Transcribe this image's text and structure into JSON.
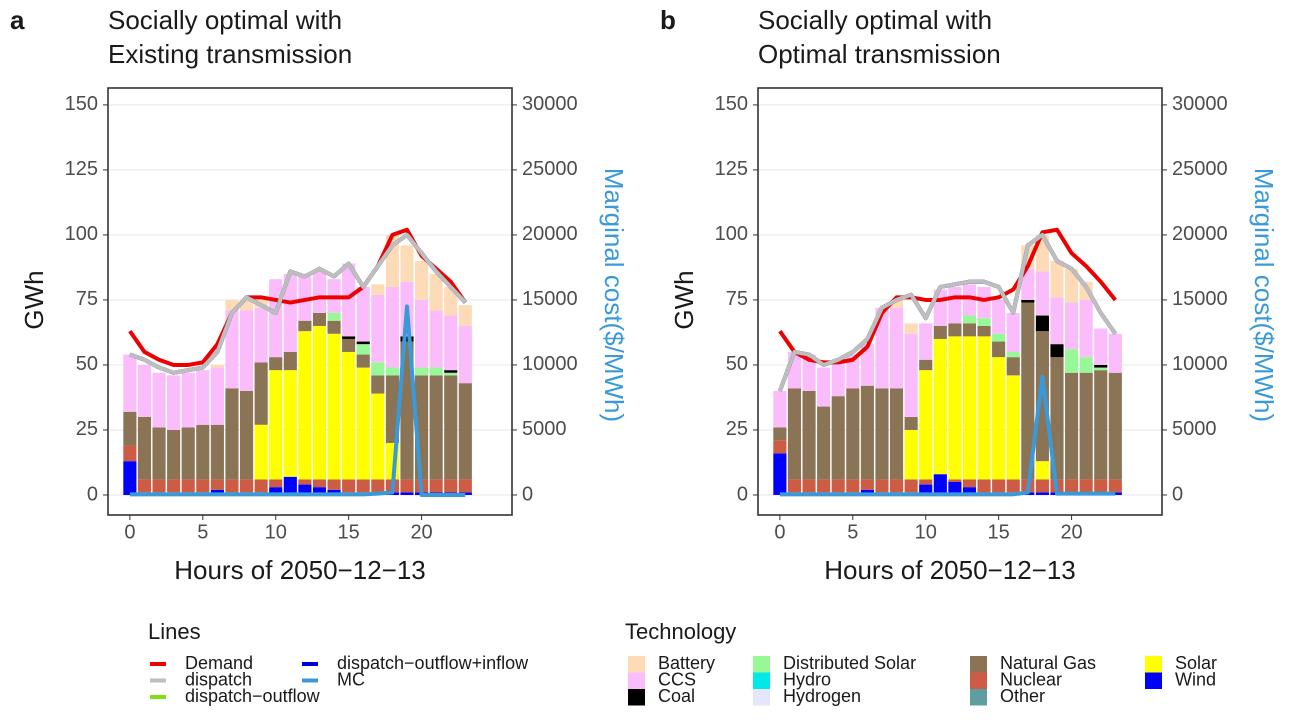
{
  "chart_data": [
    {
      "type": "bar",
      "panel": "a",
      "title": [
        "Socially optimal with",
        "Existing transmission"
      ],
      "x_label": "Hours of 2050−12−13",
      "y_label": "GWh",
      "y2_label": "Marginal cost($/MWh)",
      "x": [
        0,
        1,
        2,
        3,
        4,
        5,
        6,
        7,
        8,
        9,
        10,
        11,
        12,
        13,
        14,
        15,
        16,
        17,
        18,
        19,
        20,
        21,
        22,
        23
      ],
      "xlim": [
        -1.5,
        26.2
      ],
      "xticks": [
        0,
        5,
        10,
        15,
        20
      ],
      "ylim": [
        -7.7,
        156.5
      ],
      "yticks": [
        0,
        25,
        50,
        75,
        100,
        125,
        150
      ],
      "y2lim": [
        -1540,
        31300
      ],
      "y2ticks": [
        0,
        5000,
        10000,
        15000,
        20000,
        25000,
        30000
      ],
      "grid": true,
      "series": [
        {
          "name": "Wind",
          "color": "#0000ff",
          "values": [
            13,
            1,
            1,
            1,
            1,
            1,
            2,
            1,
            1,
            1,
            3,
            7,
            4,
            3,
            2,
            1,
            1,
            1,
            1,
            1,
            1,
            1,
            1,
            1
          ]
        },
        {
          "name": "Nuclear",
          "color": "#cd5c45",
          "values": [
            6,
            5,
            5,
            5,
            5,
            5,
            4,
            5,
            5,
            5,
            3,
            0,
            2,
            3,
            4,
            5,
            5,
            5,
            5,
            5,
            5,
            5,
            5,
            5
          ]
        },
        {
          "name": "Other",
          "color": "#5f9ea0",
          "values": [
            0,
            0,
            0,
            0,
            0,
            0,
            0,
            0,
            0,
            0,
            0,
            0,
            0,
            0,
            0,
            0,
            0,
            0,
            0,
            0,
            0,
            0,
            0,
            0
          ]
        },
        {
          "name": "Solar",
          "color": "#ffff00",
          "values": [
            0,
            0,
            0,
            0,
            0,
            0,
            0,
            0,
            0,
            21,
            42,
            41,
            57,
            59,
            56,
            49,
            43,
            33,
            14,
            0,
            0,
            0,
            0,
            0
          ]
        },
        {
          "name": "Natural Gas",
          "color": "#8b7355",
          "values": [
            13,
            24,
            20,
            19,
            20,
            21,
            21,
            35,
            34,
            24,
            5,
            7,
            4,
            5,
            5,
            5,
            5,
            7,
            26,
            53,
            40,
            40,
            40,
            37
          ]
        },
        {
          "name": "Hydrogen",
          "color": "#e6e6fa",
          "values": [
            0,
            0,
            0,
            0,
            0,
            0,
            0,
            0,
            0,
            0,
            0,
            0,
            0,
            0,
            0,
            0,
            0,
            0,
            0,
            0,
            0,
            0,
            0,
            0
          ]
        },
        {
          "name": "Hydro",
          "color": "#00e8e8",
          "values": [
            0,
            0,
            0,
            0,
            0,
            0,
            0,
            0,
            0,
            0,
            0,
            0,
            0,
            0,
            0,
            0,
            0,
            0,
            0,
            0,
            0,
            0,
            0,
            0
          ]
        },
        {
          "name": "Distributed Solar",
          "color": "#98f898",
          "values": [
            0,
            0,
            0,
            0,
            0,
            0,
            0,
            0,
            0,
            0,
            0,
            0,
            0,
            0,
            3,
            0,
            4,
            5,
            3,
            0,
            3,
            3,
            1,
            0
          ]
        },
        {
          "name": "Coal",
          "color": "#000000",
          "values": [
            0,
            0,
            0,
            0,
            0,
            0,
            0,
            0,
            0,
            0,
            0,
            0,
            0,
            0,
            0,
            1,
            1,
            0,
            0,
            2,
            0,
            0,
            1,
            0
          ]
        },
        {
          "name": "CCS",
          "color": "#fbbcfb",
          "values": [
            22,
            20,
            21,
            21,
            21,
            21,
            22,
            30,
            31,
            21,
            30,
            30,
            17,
            16,
            13,
            28,
            21,
            26,
            31,
            21,
            26,
            22,
            21,
            22
          ]
        },
        {
          "name": "Battery",
          "color": "#fddbb7",
          "values": [
            0,
            0,
            0,
            0,
            0,
            0,
            1,
            4,
            4,
            3,
            0,
            0,
            0,
            0,
            0,
            0,
            0,
            4,
            20,
            14,
            15,
            14,
            11,
            8
          ]
        }
      ],
      "lines": [
        {
          "name": "Demand",
          "color": "#ee0000",
          "values": [
            63,
            55,
            52,
            50,
            50,
            51,
            58,
            70,
            76,
            76,
            75,
            74,
            75,
            76,
            76,
            76,
            80,
            88,
            100,
            102,
            92,
            87,
            82,
            74
          ]
        },
        {
          "name": "dispatch−outflow",
          "color": "#7fe00f",
          "values": [
            54,
            52,
            49,
            47,
            48,
            49,
            55,
            70,
            76,
            73,
            70,
            86,
            84,
            87,
            84,
            89,
            80,
            88,
            96,
            100,
            93,
            86,
            80,
            74
          ]
        },
        {
          "name": "dispatch−outflow+inflow",
          "color": "#0000cd",
          "values": [
            54,
            52,
            49,
            47,
            48,
            49,
            55,
            70,
            76,
            73,
            70,
            86,
            84,
            87,
            84,
            89,
            80,
            88,
            96,
            100,
            93,
            86,
            80,
            74
          ]
        },
        {
          "name": "dispatch",
          "color": "#bebebe",
          "values": [
            54,
            52,
            49,
            47,
            48,
            49,
            55,
            70,
            76,
            73,
            70,
            86,
            84,
            87,
            84,
            89,
            80,
            88,
            96,
            100,
            93,
            86,
            80,
            74
          ]
        },
        {
          "name": "MC",
          "color": "#3a9ad9",
          "axis": "y2",
          "values": [
            50,
            50,
            50,
            50,
            50,
            50,
            50,
            50,
            50,
            50,
            50,
            50,
            50,
            50,
            50,
            50,
            50,
            100,
            200,
            14500,
            0,
            0,
            0,
            0
          ]
        }
      ]
    },
    {
      "type": "bar",
      "panel": "b",
      "title": [
        "Socially optimal with",
        "Optimal transmission"
      ],
      "x_label": "Hours of 2050−12−13",
      "y_label": "GWh",
      "y2_label": "Marginal cost($/MWh)",
      "x": [
        0,
        1,
        2,
        3,
        4,
        5,
        6,
        7,
        8,
        9,
        10,
        11,
        12,
        13,
        14,
        15,
        16,
        17,
        18,
        19,
        20,
        21,
        22,
        23
      ],
      "xlim": [
        -1.5,
        26.2
      ],
      "xticks": [
        0,
        5,
        10,
        15,
        20
      ],
      "ylim": [
        -7.7,
        156.5
      ],
      "yticks": [
        0,
        25,
        50,
        75,
        100,
        125,
        150
      ],
      "y2lim": [
        -1540,
        31300
      ],
      "y2ticks": [
        0,
        5000,
        10000,
        15000,
        20000,
        25000,
        30000
      ],
      "grid": true,
      "series": [
        {
          "name": "Wind",
          "color": "#0000ff",
          "values": [
            16,
            1,
            1,
            1,
            1,
            1,
            2,
            1,
            1,
            1,
            4,
            8,
            5,
            3,
            1,
            1,
            1,
            1,
            1,
            1,
            1,
            1,
            1,
            1
          ]
        },
        {
          "name": "Nuclear",
          "color": "#cd5c45",
          "values": [
            5,
            5,
            5,
            5,
            5,
            5,
            4,
            5,
            5,
            5,
            2,
            0,
            1,
            3,
            5,
            5,
            5,
            5,
            5,
            5,
            5,
            5,
            5,
            5
          ]
        },
        {
          "name": "Other",
          "color": "#5f9ea0",
          "values": [
            0,
            0,
            0,
            0,
            0,
            0,
            0,
            0,
            0,
            0,
            0,
            0,
            0,
            0,
            0,
            0,
            0,
            0,
            0,
            0,
            0,
            0,
            0,
            0
          ]
        },
        {
          "name": "Solar",
          "color": "#ffff00",
          "values": [
            0,
            0,
            0,
            0,
            0,
            0,
            0,
            0,
            0,
            19,
            42,
            52,
            55,
            55,
            55,
            47,
            40,
            0,
            7,
            0,
            0,
            0,
            0,
            0
          ]
        },
        {
          "name": "Natural Gas",
          "color": "#8b7355",
          "values": [
            5,
            35,
            34,
            28,
            32,
            35,
            36,
            35,
            35,
            5,
            4,
            5,
            5,
            5,
            4,
            6,
            7,
            68,
            50,
            47,
            41,
            41,
            42,
            41
          ]
        },
        {
          "name": "Hydrogen",
          "color": "#e6e6fa",
          "values": [
            0,
            0,
            0,
            0,
            0,
            0,
            0,
            0,
            0,
            0,
            0,
            0,
            0,
            0,
            0,
            0,
            0,
            0,
            0,
            0,
            0,
            0,
            0,
            0
          ]
        },
        {
          "name": "Hydro",
          "color": "#00e8e8",
          "values": [
            0,
            0,
            0,
            0,
            0,
            0,
            0,
            0,
            0,
            0,
            0,
            0,
            0,
            0,
            0,
            0,
            0,
            0,
            0,
            0,
            0,
            0,
            0,
            0
          ]
        },
        {
          "name": "Distributed Solar",
          "color": "#98f898",
          "values": [
            0,
            0,
            0,
            0,
            0,
            0,
            0,
            0,
            0,
            0,
            0,
            0,
            0,
            3,
            3,
            3,
            2,
            0,
            0,
            0,
            9,
            6,
            1,
            0
          ]
        },
        {
          "name": "Coal",
          "color": "#000000",
          "values": [
            0,
            0,
            0,
            0,
            0,
            0,
            0,
            0,
            0,
            0,
            0,
            0,
            0,
            0,
            0,
            0,
            0,
            1,
            6,
            5,
            0,
            0,
            1,
            0
          ]
        },
        {
          "name": "CCS",
          "color": "#fbbcfb",
          "values": [
            14,
            14,
            14,
            15,
            14,
            13,
            16,
            31,
            31,
            32,
            14,
            14,
            14,
            12,
            12,
            13,
            15,
            12,
            17,
            18,
            18,
            22,
            14,
            15
          ]
        },
        {
          "name": "Battery",
          "color": "#fddbb7",
          "values": [
            0,
            0,
            0,
            0,
            0,
            0,
            0,
            0,
            3,
            4,
            0,
            0,
            0,
            0,
            0,
            0,
            0,
            9,
            14,
            14,
            13,
            7,
            0,
            0
          ]
        }
      ],
      "lines": [
        {
          "name": "Demand",
          "color": "#ee0000",
          "values": [
            63,
            55,
            52,
            51,
            51,
            52,
            57,
            70,
            76,
            76,
            75,
            75,
            76,
            76,
            75,
            76,
            79,
            88,
            101,
            102,
            93,
            88,
            82,
            75
          ]
        },
        {
          "name": "dispatch−outflow",
          "color": "#7fe00f",
          "values": [
            40,
            55,
            54,
            50,
            52,
            55,
            60,
            72,
            75,
            77,
            68,
            80,
            81,
            82,
            82,
            80,
            70,
            96,
            100,
            90,
            87,
            80,
            70,
            62
          ]
        },
        {
          "name": "dispatch−outflow+inflow",
          "color": "#0000cd",
          "values": [
            40,
            55,
            54,
            50,
            52,
            55,
            60,
            72,
            75,
            77,
            68,
            80,
            81,
            82,
            82,
            80,
            70,
            96,
            100,
            90,
            87,
            80,
            70,
            62
          ]
        },
        {
          "name": "dispatch",
          "color": "#bebebe",
          "values": [
            40,
            55,
            54,
            50,
            52,
            55,
            60,
            72,
            75,
            77,
            68,
            80,
            81,
            82,
            82,
            80,
            70,
            96,
            100,
            90,
            87,
            80,
            70,
            62
          ]
        },
        {
          "name": "MC",
          "color": "#3a9ad9",
          "axis": "y2",
          "values": [
            50,
            50,
            50,
            50,
            50,
            50,
            50,
            50,
            50,
            50,
            50,
            50,
            50,
            50,
            50,
            50,
            50,
            200,
            9100,
            100,
            100,
            100,
            100,
            100
          ]
        }
      ]
    }
  ],
  "legend": {
    "lines_title": "Lines",
    "technology_title": "Technology"
  }
}
